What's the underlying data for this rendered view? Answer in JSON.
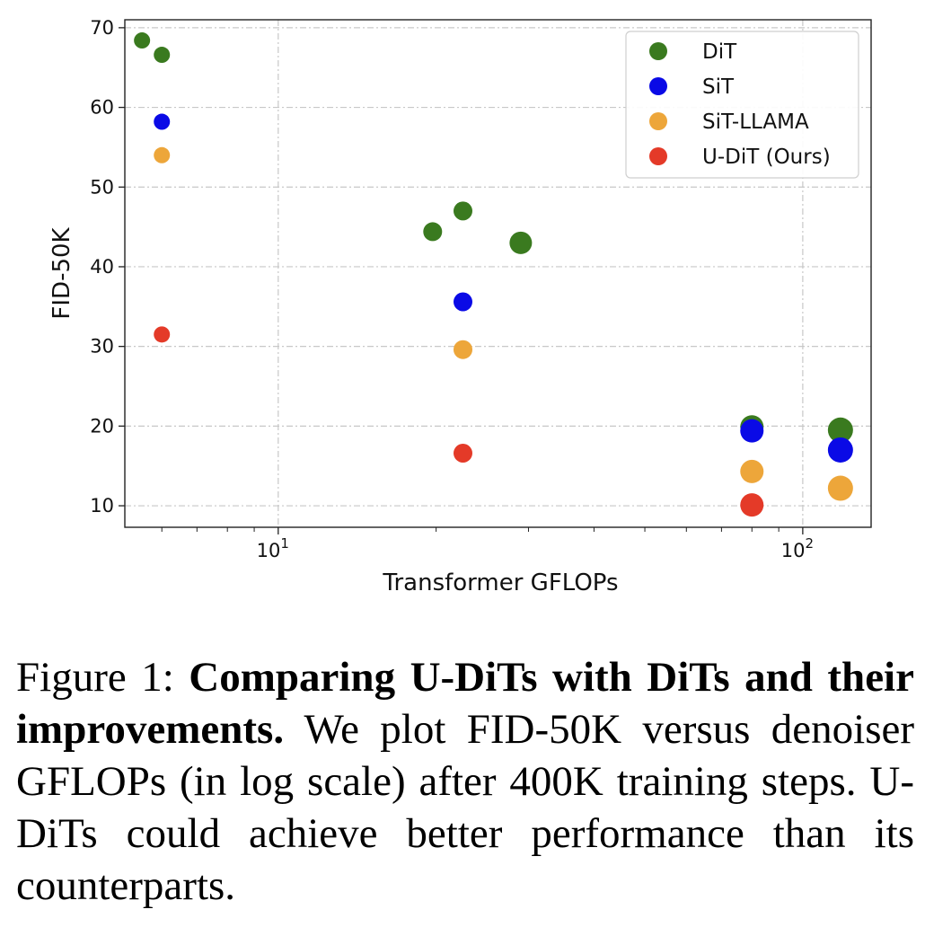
{
  "chart_data": {
    "type": "scatter",
    "xlabel": "Transformer GFLOPs",
    "ylabel": "FID-50K",
    "xscale": "log",
    "xlim": [
      5.1,
      135
    ],
    "ylim": [
      7.3,
      71
    ],
    "grid": true,
    "legend_position": "top-right",
    "x_ticks": [
      {
        "value": 10,
        "base": "10",
        "exp": "1"
      },
      {
        "value": 100,
        "base": "10",
        "exp": "2"
      }
    ],
    "y_ticks": [
      10,
      20,
      30,
      40,
      50,
      60,
      70
    ],
    "series": [
      {
        "name": "DiT",
        "color": "#3a7a1f",
        "points": [
          {
            "x": 5.5,
            "y": 68.4,
            "s": 1
          },
          {
            "x": 6.0,
            "y": 66.6,
            "s": 1
          },
          {
            "x": 19.7,
            "y": 44.4,
            "s": 2
          },
          {
            "x": 22.5,
            "y": 47.0,
            "s": 2
          },
          {
            "x": 29.0,
            "y": 43.0,
            "s": 3
          },
          {
            "x": 80.0,
            "y": 19.9,
            "s": 4
          },
          {
            "x": 118.0,
            "y": 19.5,
            "s": 5
          }
        ]
      },
      {
        "name": "SiT",
        "color": "#0a0ae6",
        "points": [
          {
            "x": 6.0,
            "y": 58.2,
            "s": 1
          },
          {
            "x": 22.5,
            "y": 35.6,
            "s": 2
          },
          {
            "x": 80.0,
            "y": 19.4,
            "s": 4
          },
          {
            "x": 118.0,
            "y": 17.0,
            "s": 5
          }
        ]
      },
      {
        "name": "SiT-LLAMA",
        "color": "#eda63a",
        "points": [
          {
            "x": 6.0,
            "y": 54.0,
            "s": 1
          },
          {
            "x": 22.5,
            "y": 29.6,
            "s": 2
          },
          {
            "x": 80.0,
            "y": 14.3,
            "s": 4
          },
          {
            "x": 118.0,
            "y": 12.2,
            "s": 5
          }
        ]
      },
      {
        "name": "U-DiT (Ours)",
        "color": "#e43a28",
        "points": [
          {
            "x": 6.0,
            "y": 31.5,
            "s": 1
          },
          {
            "x": 22.5,
            "y": 16.6,
            "s": 2
          },
          {
            "x": 80.0,
            "y": 10.1,
            "s": 4
          }
        ]
      }
    ]
  },
  "caption": {
    "prefix": "Figure 1: ",
    "bold": "Comparing U-DiTs with DiTs and their improvements.",
    "rest": " We plot FID-50K versus denoiser GFLOPs (in log scale) after 400K training steps. U-DiTs could achieve better performance than its counterparts."
  }
}
